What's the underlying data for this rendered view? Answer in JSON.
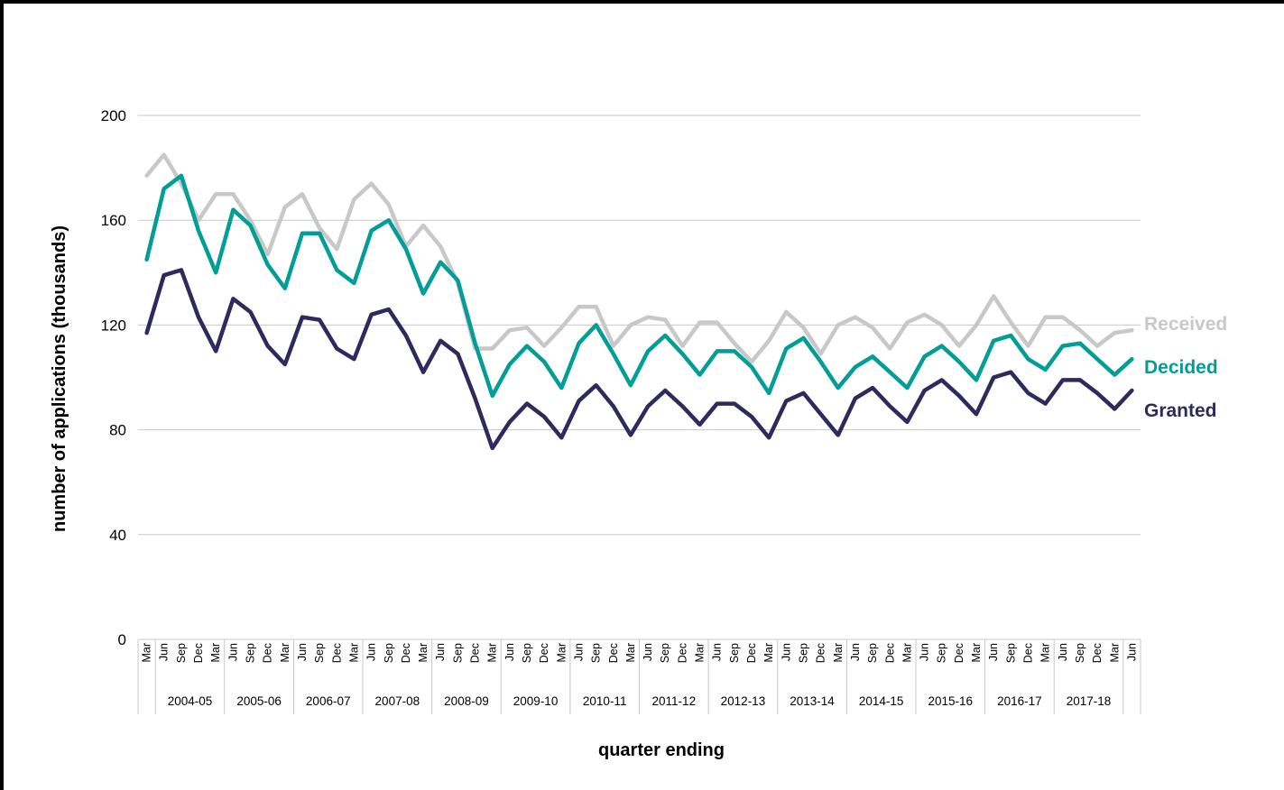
{
  "chart_data": {
    "type": "line",
    "xlabel": "quarter ending",
    "ylabel": "number of applications (thousands)",
    "ylim": [
      0,
      200
    ],
    "yticks": [
      0,
      40,
      80,
      120,
      160,
      200
    ],
    "grid": "horizontal",
    "legend": "inline labels at right end of lines",
    "x": [
      "Mar",
      "Jun",
      "Sep",
      "Dec",
      "Mar",
      "Jun",
      "Sep",
      "Dec",
      "Mar",
      "Jun",
      "Sep",
      "Dec",
      "Mar",
      "Jun",
      "Sep",
      "Dec",
      "Mar",
      "Jun",
      "Sep",
      "Dec",
      "Mar",
      "Jun",
      "Sep",
      "Dec",
      "Mar",
      "Jun",
      "Sep",
      "Dec",
      "Mar",
      "Jun",
      "Sep",
      "Dec",
      "Mar",
      "Jun",
      "Sep",
      "Dec",
      "Mar",
      "Jun",
      "Sep",
      "Dec",
      "Mar",
      "Jun",
      "Sep",
      "Dec",
      "Mar",
      "Jun",
      "Sep",
      "Dec",
      "Mar",
      "Jun",
      "Sep",
      "Dec",
      "Mar",
      "Jun",
      "Sep",
      "Dec",
      "Mar",
      "Jun"
    ],
    "groups": [
      {
        "label": "",
        "span": 1
      },
      {
        "label": "2004-05",
        "span": 4
      },
      {
        "label": "2005-06",
        "span": 4
      },
      {
        "label": "2006-07",
        "span": 4
      },
      {
        "label": "2007-08",
        "span": 4
      },
      {
        "label": "2008-09",
        "span": 4
      },
      {
        "label": "2009-10",
        "span": 4
      },
      {
        "label": "2010-11",
        "span": 4
      },
      {
        "label": "2011-12",
        "span": 4
      },
      {
        "label": "2012-13",
        "span": 4
      },
      {
        "label": "2013-14",
        "span": 4
      },
      {
        "label": "2014-15",
        "span": 4
      },
      {
        "label": "2015-16",
        "span": 4
      },
      {
        "label": "2016-17",
        "span": 4
      },
      {
        "label": "2017-18",
        "span": 4
      },
      {
        "label": "",
        "span": 1
      }
    ],
    "series": [
      {
        "name": "Received",
        "color": "#c8c8c8",
        "values": [
          177,
          185,
          174,
          160,
          170,
          170,
          160,
          147,
          165,
          170,
          157,
          149,
          168,
          174,
          166,
          150,
          158,
          150,
          136,
          111,
          111,
          118,
          119,
          112,
          119,
          127,
          127,
          112,
          120,
          123,
          122,
          112,
          121,
          121,
          113,
          106,
          114,
          125,
          119,
          109,
          120,
          123,
          119,
          111,
          121,
          124,
          120,
          112,
          120,
          131,
          121,
          112,
          123,
          123,
          118,
          112,
          117,
          118
        ]
      },
      {
        "name": "Decided",
        "color": "#009e96",
        "values": [
          145,
          172,
          177,
          156,
          140,
          164,
          158,
          143,
          134,
          155,
          155,
          141,
          136,
          156,
          160,
          149,
          132,
          144,
          137,
          113,
          93,
          105,
          112,
          106,
          96,
          113,
          120,
          109,
          97,
          110,
          116,
          109,
          101,
          110,
          110,
          104,
          94,
          111,
          115,
          106,
          96,
          104,
          108,
          102,
          96,
          108,
          112,
          106,
          99,
          114,
          116,
          107,
          103,
          112,
          113,
          107,
          101,
          107
        ]
      },
      {
        "name": "Granted",
        "color": "#2e2a5e",
        "values": [
          117,
          139,
          141,
          123,
          110,
          130,
          125,
          112,
          105,
          123,
          122,
          111,
          107,
          124,
          126,
          116,
          102,
          114,
          109,
          92,
          73,
          83,
          90,
          85,
          77,
          91,
          97,
          89,
          78,
          89,
          95,
          89,
          82,
          90,
          90,
          85,
          77,
          91,
          94,
          86,
          78,
          92,
          96,
          89,
          83,
          95,
          99,
          93,
          86,
          100,
          102,
          94,
          90,
          99,
          99,
          94,
          88,
          95
        ]
      }
    ]
  }
}
